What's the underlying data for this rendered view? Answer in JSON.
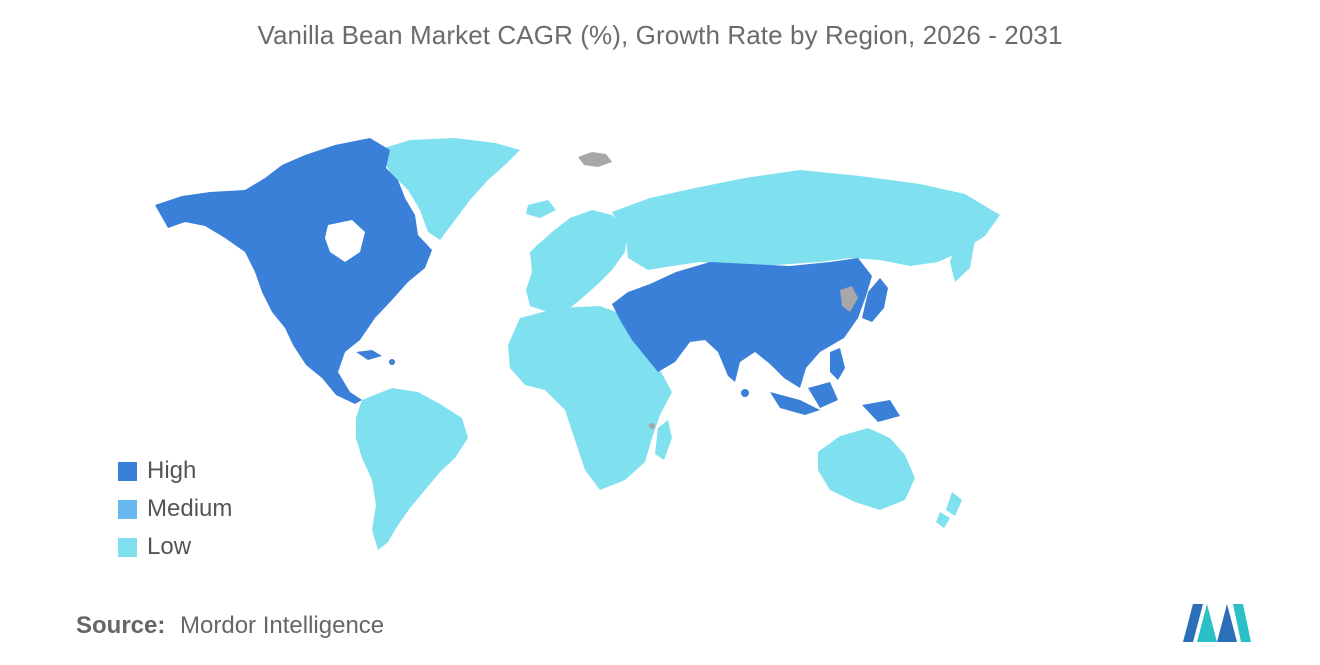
{
  "title": "Vanilla Bean Market CAGR (%), Growth Rate by Region, 2026 - 2031",
  "colors": {
    "high": "#3a7fd8",
    "medium": "#6ab8f0",
    "low": "#7fe0ef",
    "no_data": "#a8a8a8"
  },
  "legend": [
    {
      "label": "High",
      "color": "#3a7fd8"
    },
    {
      "label": "Medium",
      "color": "#6ab8f0"
    },
    {
      "label": "Low",
      "color": "#7fe0ef"
    }
  ],
  "regions": [
    {
      "name": "North America",
      "category": "High"
    },
    {
      "name": "Latin America",
      "category": "Low"
    },
    {
      "name": "Europe",
      "category": "Low"
    },
    {
      "name": "Middle East and Africa",
      "category": "Low"
    },
    {
      "name": "Middle East",
      "category": "High"
    },
    {
      "name": "Asia-Pacific",
      "category": "High"
    },
    {
      "name": "Russia",
      "category": "Low"
    },
    {
      "name": "Australia and New Zealand",
      "category": "Low"
    }
  ],
  "source": {
    "label": "Source:",
    "value": "Mordor Intelligence"
  },
  "logo": {
    "icon": "mordor-intelligence-logo-icon"
  }
}
